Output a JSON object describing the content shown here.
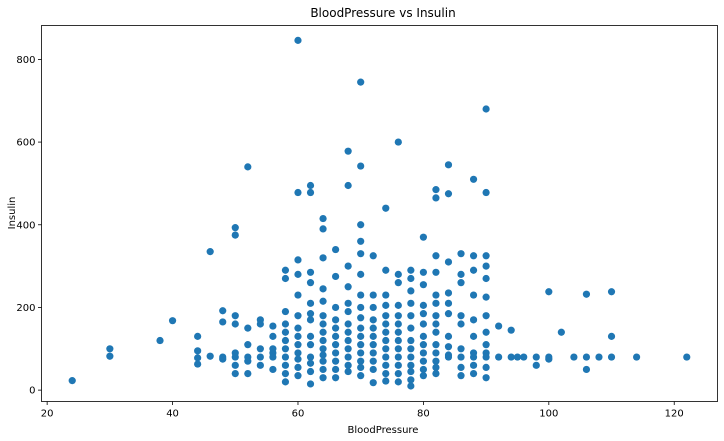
{
  "chart_data": {
    "type": "scatter",
    "title": "BloodPressure vs Insulin",
    "xlabel": "BloodPressure",
    "ylabel": "Insulin",
    "xlim": [
      19.1,
      126.9
    ],
    "ylim": [
      -27.5,
      882.0
    ],
    "xticks": [
      20,
      40,
      60,
      80,
      100,
      120
    ],
    "yticks": [
      0,
      200,
      400,
      600,
      800
    ],
    "grid": false,
    "marker_color": "#1f77b4",
    "series": [
      {
        "points": [
          [
            24,
            23
          ],
          [
            30,
            100
          ],
          [
            30,
            82
          ],
          [
            38,
            120
          ],
          [
            40,
            168
          ],
          [
            44,
            130
          ],
          [
            44,
            95
          ],
          [
            44,
            78
          ],
          [
            44,
            63
          ],
          [
            46,
            335
          ],
          [
            46,
            82
          ],
          [
            48,
            192
          ],
          [
            48,
            165
          ],
          [
            48,
            80
          ],
          [
            48,
            75
          ],
          [
            50,
            393
          ],
          [
            50,
            375
          ],
          [
            50,
            180
          ],
          [
            50,
            160
          ],
          [
            50,
            90
          ],
          [
            50,
            80
          ],
          [
            50,
            60
          ],
          [
            50,
            40
          ],
          [
            52,
            540
          ],
          [
            52,
            150
          ],
          [
            52,
            110
          ],
          [
            52,
            80
          ],
          [
            52,
            70
          ],
          [
            52,
            40
          ],
          [
            54,
            170
          ],
          [
            54,
            160
          ],
          [
            54,
            100
          ],
          [
            54,
            80
          ],
          [
            54,
            60
          ],
          [
            56,
            155
          ],
          [
            56,
            130
          ],
          [
            56,
            100
          ],
          [
            56,
            90
          ],
          [
            56,
            80
          ],
          [
            56,
            50
          ],
          [
            58,
            290
          ],
          [
            58,
            270
          ],
          [
            58,
            190
          ],
          [
            58,
            160
          ],
          [
            58,
            140
          ],
          [
            58,
            120
          ],
          [
            58,
            100
          ],
          [
            58,
            80
          ],
          [
            58,
            60
          ],
          [
            58,
            40
          ],
          [
            58,
            20
          ],
          [
            60,
            846
          ],
          [
            60,
            478
          ],
          [
            60,
            315
          ],
          [
            60,
            280
          ],
          [
            60,
            230
          ],
          [
            60,
            180
          ],
          [
            60,
            150
          ],
          [
            60,
            130
          ],
          [
            60,
            110
          ],
          [
            60,
            90
          ],
          [
            60,
            75
          ],
          [
            60,
            55
          ],
          [
            60,
            35
          ],
          [
            62,
            495
          ],
          [
            62,
            478
          ],
          [
            62,
            285
          ],
          [
            62,
            260
          ],
          [
            62,
            210
          ],
          [
            62,
            185
          ],
          [
            62,
            170
          ],
          [
            62,
            130
          ],
          [
            62,
            110
          ],
          [
            62,
            80
          ],
          [
            62,
            65
          ],
          [
            62,
            45
          ],
          [
            62,
            15
          ],
          [
            64,
            415
          ],
          [
            64,
            390
          ],
          [
            64,
            320
          ],
          [
            64,
            245
          ],
          [
            64,
            215
          ],
          [
            64,
            180
          ],
          [
            64,
            160
          ],
          [
            64,
            140
          ],
          [
            64,
            120
          ],
          [
            64,
            100
          ],
          [
            64,
            85
          ],
          [
            64,
            70
          ],
          [
            64,
            50
          ],
          [
            64,
            30
          ],
          [
            66,
            340
          ],
          [
            66,
            275
          ],
          [
            66,
            200
          ],
          [
            66,
            170
          ],
          [
            66,
            150
          ],
          [
            66,
            130
          ],
          [
            66,
            110
          ],
          [
            66,
            90
          ],
          [
            66,
            70
          ],
          [
            66,
            50
          ],
          [
            66,
            30
          ],
          [
            68,
            578
          ],
          [
            68,
            495
          ],
          [
            68,
            300
          ],
          [
            68,
            250
          ],
          [
            68,
            210
          ],
          [
            68,
            190
          ],
          [
            68,
            160
          ],
          [
            68,
            140
          ],
          [
            68,
            120
          ],
          [
            68,
            100
          ],
          [
            68,
            80
          ],
          [
            68,
            60
          ],
          [
            68,
            45
          ],
          [
            70,
            745
          ],
          [
            70,
            542
          ],
          [
            70,
            400
          ],
          [
            70,
            360
          ],
          [
            70,
            330
          ],
          [
            70,
            280
          ],
          [
            70,
            230
          ],
          [
            70,
            200
          ],
          [
            70,
            175
          ],
          [
            70,
            150
          ],
          [
            70,
            130
          ],
          [
            70,
            110
          ],
          [
            70,
            90
          ],
          [
            70,
            70
          ],
          [
            70,
            55
          ],
          [
            70,
            35
          ],
          [
            72,
            325
          ],
          [
            72,
            230
          ],
          [
            72,
            200
          ],
          [
            72,
            170
          ],
          [
            72,
            150
          ],
          [
            72,
            130
          ],
          [
            72,
            110
          ],
          [
            72,
            90
          ],
          [
            72,
            70
          ],
          [
            72,
            50
          ],
          [
            72,
            18
          ],
          [
            74,
            440
          ],
          [
            74,
            290
          ],
          [
            74,
            230
          ],
          [
            74,
            205
          ],
          [
            74,
            180
          ],
          [
            74,
            160
          ],
          [
            74,
            140
          ],
          [
            74,
            120
          ],
          [
            74,
            100
          ],
          [
            74,
            80
          ],
          [
            74,
            60
          ],
          [
            74,
            40
          ],
          [
            74,
            22
          ],
          [
            76,
            600
          ],
          [
            76,
            280
          ],
          [
            76,
            260
          ],
          [
            76,
            205
          ],
          [
            76,
            180
          ],
          [
            76,
            160
          ],
          [
            76,
            140
          ],
          [
            76,
            120
          ],
          [
            76,
            100
          ],
          [
            76,
            80
          ],
          [
            76,
            60
          ],
          [
            76,
            40
          ],
          [
            76,
            20
          ],
          [
            78,
            290
          ],
          [
            78,
            270
          ],
          [
            78,
            240
          ],
          [
            78,
            210
          ],
          [
            78,
            180
          ],
          [
            78,
            150
          ],
          [
            78,
            120
          ],
          [
            78,
            100
          ],
          [
            78,
            80
          ],
          [
            78,
            60
          ],
          [
            78,
            45
          ],
          [
            78,
            25
          ],
          [
            78,
            10
          ],
          [
            80,
            370
          ],
          [
            80,
            285
          ],
          [
            80,
            255
          ],
          [
            80,
            205
          ],
          [
            80,
            185
          ],
          [
            80,
            160
          ],
          [
            80,
            130
          ],
          [
            80,
            110
          ],
          [
            80,
            90
          ],
          [
            80,
            70
          ],
          [
            80,
            50
          ],
          [
            80,
            35
          ],
          [
            82,
            485
          ],
          [
            82,
            465
          ],
          [
            82,
            325
          ],
          [
            82,
            285
          ],
          [
            82,
            230
          ],
          [
            82,
            210
          ],
          [
            82,
            180
          ],
          [
            82,
            160
          ],
          [
            82,
            140
          ],
          [
            82,
            110
          ],
          [
            82,
            90
          ],
          [
            82,
            70
          ],
          [
            82,
            55
          ],
          [
            82,
            40
          ],
          [
            84,
            545
          ],
          [
            84,
            475
          ],
          [
            84,
            310
          ],
          [
            84,
            235
          ],
          [
            84,
            210
          ],
          [
            84,
            185
          ],
          [
            84,
            130
          ],
          [
            84,
            105
          ],
          [
            84,
            85
          ],
          [
            84,
            80
          ],
          [
            86,
            330
          ],
          [
            86,
            280
          ],
          [
            86,
            260
          ],
          [
            86,
            180
          ],
          [
            86,
            160
          ],
          [
            86,
            100
          ],
          [
            86,
            80
          ],
          [
            86,
            55
          ],
          [
            86,
            35
          ],
          [
            88,
            510
          ],
          [
            88,
            325
          ],
          [
            88,
            290
          ],
          [
            88,
            230
          ],
          [
            88,
            170
          ],
          [
            88,
            130
          ],
          [
            88,
            90
          ],
          [
            88,
            80
          ],
          [
            88,
            60
          ],
          [
            88,
            40
          ],
          [
            90,
            680
          ],
          [
            90,
            478
          ],
          [
            90,
            325
          ],
          [
            90,
            300
          ],
          [
            90,
            270
          ],
          [
            90,
            225
          ],
          [
            90,
            180
          ],
          [
            90,
            140
          ],
          [
            90,
            110
          ],
          [
            90,
            90
          ],
          [
            90,
            80
          ],
          [
            90,
            55
          ],
          [
            90,
            30
          ],
          [
            92,
            155
          ],
          [
            92,
            80
          ],
          [
            94,
            145
          ],
          [
            94,
            80
          ],
          [
            95,
            80
          ],
          [
            96,
            80
          ],
          [
            98,
            80
          ],
          [
            98,
            60
          ],
          [
            100,
            238
          ],
          [
            100,
            80
          ],
          [
            100,
            75
          ],
          [
            102,
            140
          ],
          [
            104,
            80
          ],
          [
            106,
            232
          ],
          [
            106,
            80
          ],
          [
            106,
            50
          ],
          [
            108,
            80
          ],
          [
            110,
            238
          ],
          [
            110,
            130
          ],
          [
            110,
            80
          ],
          [
            114,
            80
          ],
          [
            122,
            80
          ]
        ]
      }
    ]
  }
}
